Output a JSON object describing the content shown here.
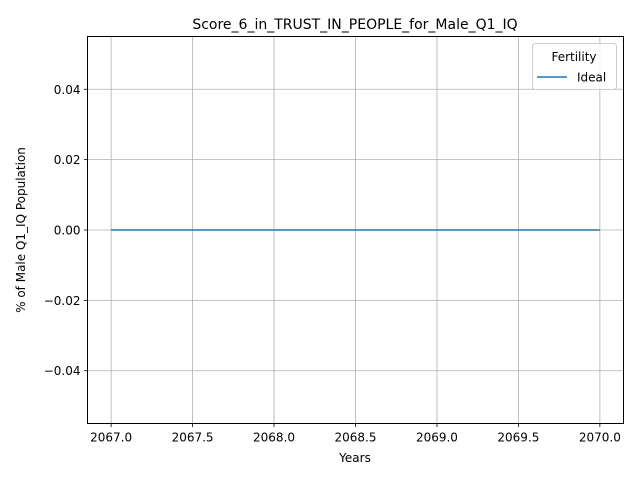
{
  "chart_data": {
    "type": "line",
    "title": "Score_6_in_TRUST_IN_PEOPLE_for_Male_Q1_IQ",
    "xlabel": "Years",
    "ylabel": "% of Male Q1_IQ Population",
    "xlim": [
      2066.855,
      2070.145
    ],
    "ylim": [
      -0.055,
      0.055
    ],
    "x_ticks": [
      2067.0,
      2067.5,
      2068.0,
      2068.5,
      2069.0,
      2069.5,
      2070.0
    ],
    "x_tick_labels": [
      "2067.0",
      "2067.5",
      "2068.0",
      "2068.5",
      "2069.0",
      "2069.5",
      "2070.0"
    ],
    "y_ticks": [
      -0.04,
      -0.02,
      0.0,
      0.02,
      0.04
    ],
    "y_tick_labels": [
      "−0.04",
      "−0.02",
      "0.00",
      "0.02",
      "0.04"
    ],
    "grid": true,
    "legend": {
      "title": "Fertility",
      "position": "top-right"
    },
    "series": [
      {
        "name": "Ideal",
        "color": "#1f77b4",
        "x": [
          2067,
          2068,
          2069,
          2070
        ],
        "values": [
          0,
          0,
          0,
          0
        ]
      }
    ]
  }
}
